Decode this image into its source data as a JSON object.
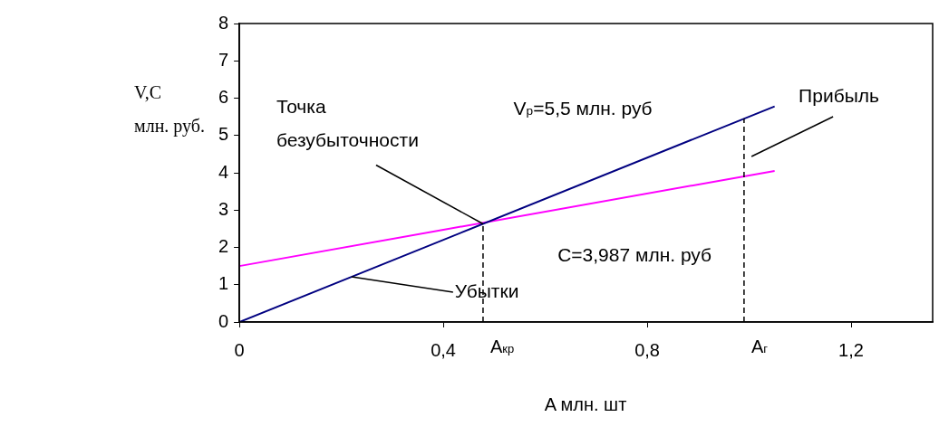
{
  "chart_data": {
    "type": "line",
    "xlabel": "A млн. шт",
    "ylabel": "V,C\nмлн. руб.",
    "xlim": [
      0,
      1.36
    ],
    "xticks": [
      0,
      {
        "value": 0.4,
        "label": "0,4"
      },
      {
        "value": 0.8,
        "label": "0,8"
      },
      {
        "value": 1.2,
        "label": "1,2"
      }
    ],
    "ylim": [
      0,
      8
    ],
    "yticks": [
      0,
      1,
      2,
      3,
      4,
      5,
      6,
      7,
      8
    ],
    "grid": false,
    "legend": false,
    "marker": "none",
    "x": [
      0,
      1.05
    ],
    "series": [
      {
        "color": "#000080",
        "values": [
          0,
          5.78
        ]
      },
      {
        "color": "#ff00ff",
        "values": [
          1.5,
          4.05
        ]
      }
    ],
    "ref_lines": [
      {
        "axis": "x",
        "value": 0.478,
        "label": "A$_{кр}$",
        "color": "#000000",
        "line_style": "dashed"
      },
      {
        "axis": "x",
        "value": 0.99,
        "label": "A$_{г}$",
        "color": "#000000",
        "line_style": "dashed"
      }
    ],
    "annotations": [
      {
        "text": "Точка\nбезубыточности",
        "x": 0.478,
        "y": 2.63
      },
      {
        "text": "Убытки",
        "x": 0.22,
        "y": 1.21
      },
      "Прибыль",
      "V$_{р}$=5,5 млн. руб",
      "C=3,987 млн. руб"
    ]
  }
}
